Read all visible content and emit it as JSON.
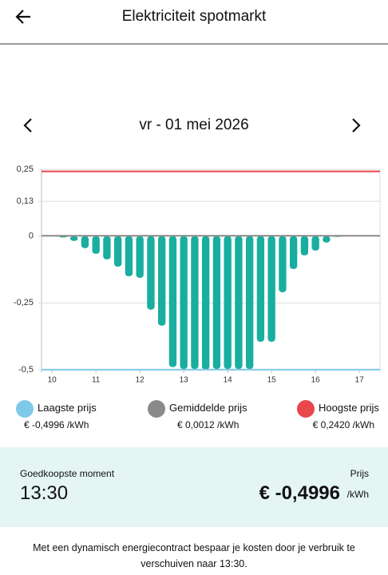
{
  "header": {
    "title": "Elektriciteit spotmarkt"
  },
  "date": "vr - 01 mei 2026",
  "chart_data": {
    "type": "bar",
    "x": [
      10.25,
      10.5,
      10.75,
      11,
      11.25,
      11.5,
      11.75,
      12,
      12.25,
      12.5,
      12.75,
      13,
      13.25,
      13.5,
      13.75,
      14,
      14.25,
      14.5,
      14.75,
      15,
      15.25,
      15.5,
      15.75,
      16,
      16.25,
      16.5
    ],
    "values": [
      -0.005,
      -0.018,
      -0.045,
      -0.066,
      -0.087,
      -0.114,
      -0.15,
      -0.156,
      -0.275,
      -0.335,
      -0.49,
      -0.497,
      -0.497,
      -0.4996,
      -0.497,
      -0.497,
      -0.497,
      -0.497,
      -0.395,
      -0.395,
      -0.21,
      -0.123,
      -0.072,
      -0.054,
      -0.024,
      -0.003
    ],
    "color": "#19ae9f",
    "xlim": [
      9.76,
      17.47
    ],
    "xticks": [
      10,
      11,
      12,
      13,
      14,
      15,
      16,
      17
    ],
    "ylim": [
      -0.5,
      0.25
    ],
    "yticks": [
      {
        "value": -0.5,
        "label": "-0,5"
      },
      {
        "value": -0.25,
        "label": "-0,25"
      },
      0,
      {
        "value": 0.13,
        "label": "0,13"
      },
      {
        "value": 0.25,
        "label": "0,25"
      }
    ],
    "grid": true,
    "reference_lines": [
      {
        "name": "Laagste prijs",
        "color": "#7ec8ea",
        "value": -0.4996,
        "value_label": "€ -0,4996 /kWh"
      },
      {
        "name": "Gemiddelde prijs",
        "color": "#8a8a8a",
        "value": 0.0012,
        "value_label": "€ 0,0012 /kWh"
      },
      {
        "name": "Hoogste prijs",
        "color": "#e8474c",
        "value": 0.242,
        "value_label": "€ 0,2420 /kWh"
      }
    ]
  },
  "cheapest": {
    "label": "Goedkoopste moment",
    "time": "13:30",
    "price_label": "Prijs",
    "price": "€ -0,4996",
    "unit": "/kWh"
  },
  "footer": "Met een dynamisch energiecontract bespaar je kosten door je verbruik te verschuiven naar 13:30."
}
